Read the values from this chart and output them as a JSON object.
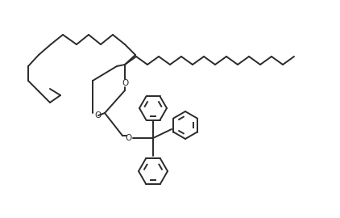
{
  "background_color": "#ffffff",
  "line_color": "#2a2a2a",
  "line_width": 1.4,
  "figsize": [
    4.22,
    2.7
  ],
  "dpi": 100,
  "xlim": [
    0,
    422
  ],
  "ylim": [
    0,
    270
  ]
}
